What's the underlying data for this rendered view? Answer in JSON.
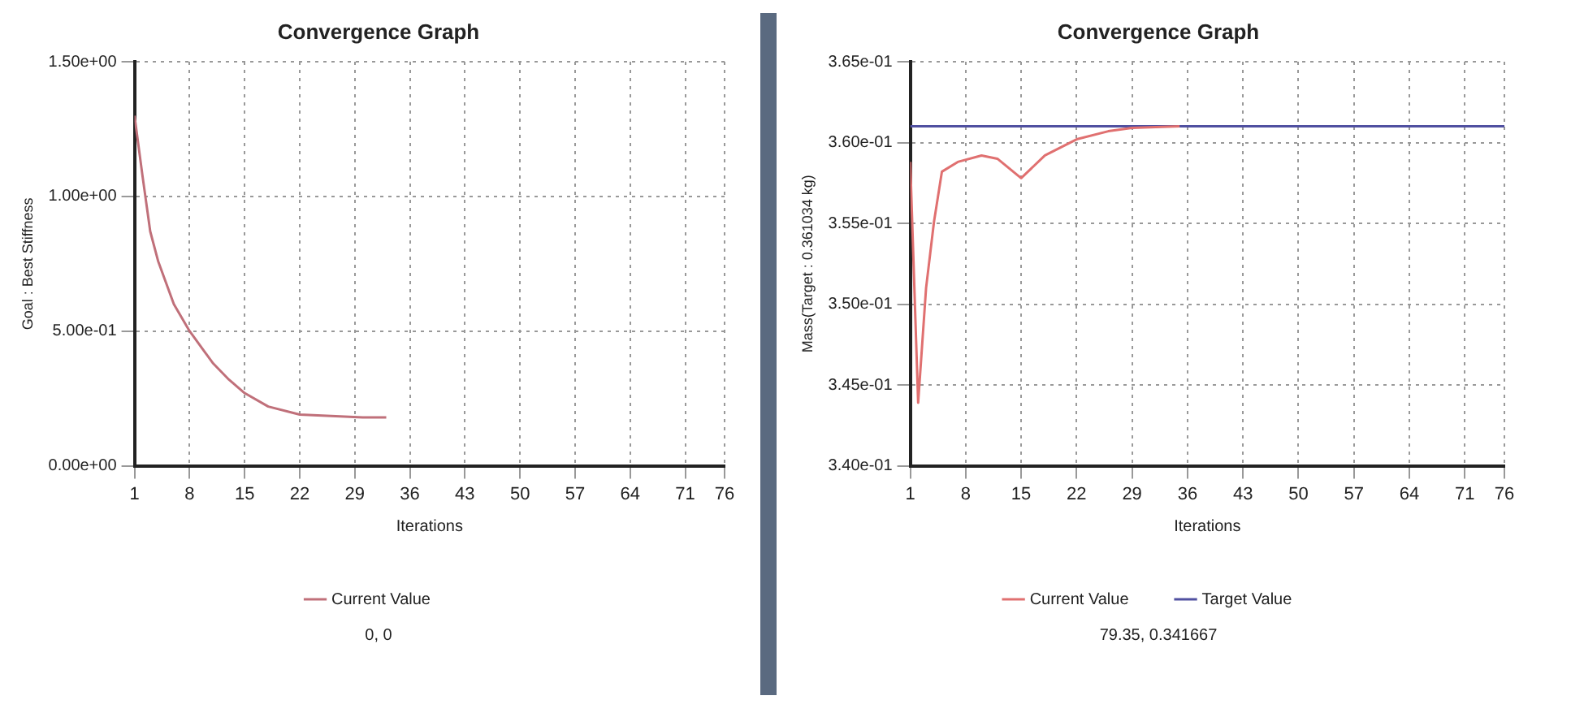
{
  "chart_data": [
    {
      "type": "line",
      "title": "Convergence Graph",
      "xlabel": "Iterations",
      "ylabel": "Goal : Best Stiffness",
      "x": [
        1,
        2,
        3,
        4,
        5,
        6,
        8,
        10,
        11,
        13,
        15,
        18,
        22,
        26,
        30,
        33
      ],
      "series": [
        {
          "name": "Current Value",
          "color": "#c0707a",
          "values": [
            1.3,
            1.08,
            0.87,
            0.76,
            0.68,
            0.6,
            0.5,
            0.42,
            0.38,
            0.32,
            0.27,
            0.22,
            0.19,
            0.185,
            0.18,
            0.18
          ]
        }
      ],
      "xlim": [
        1,
        76
      ],
      "xticks": [
        1,
        8,
        15,
        22,
        29,
        36,
        43,
        50,
        57,
        64,
        71,
        76
      ],
      "ylim": [
        0,
        1.5
      ],
      "yticks": [
        {
          "value": 0,
          "label": "0.00e+00"
        },
        {
          "value": 0.5,
          "label": "5.00e-01"
        },
        {
          "value": 1,
          "label": "1.00e+00"
        },
        {
          "value": 1.5,
          "label": "1.50e+00"
        }
      ],
      "grid": true,
      "legend": "bottom",
      "marker": "none",
      "line_style": "solid",
      "annotations": [
        "0, 0"
      ]
    },
    {
      "type": "line",
      "title": "Convergence Graph",
      "xlabel": "Iterations",
      "ylabel": "Mass(Target : 0.361034 kg)",
      "x": [
        1,
        2,
        3,
        4,
        5,
        7,
        10,
        12,
        15,
        18,
        22,
        26,
        29,
        35
      ],
      "series": [
        {
          "name": "Current Value",
          "color": "#e07070",
          "values": [
            0.3588,
            0.3439,
            0.351,
            0.3551,
            0.3582,
            0.3588,
            0.3592,
            0.359,
            0.3578,
            0.3592,
            0.3602,
            0.3607,
            0.3609,
            0.361
          ]
        },
        {
          "name": "Target Value",
          "color": "#5050a0",
          "x": [
            1,
            76
          ],
          "values": [
            0.361,
            0.361
          ]
        }
      ],
      "xlim": [
        1,
        76
      ],
      "xticks": [
        1,
        8,
        15,
        22,
        29,
        36,
        43,
        50,
        57,
        64,
        71,
        76
      ],
      "ylim": [
        0.34,
        0.365
      ],
      "yticks": [
        {
          "value": 0.34,
          "label": "3.40e-01"
        },
        {
          "value": 0.345,
          "label": "3.45e-01"
        },
        {
          "value": 0.35,
          "label": "3.50e-01"
        },
        {
          "value": 0.355,
          "label": "3.55e-01"
        },
        {
          "value": 0.36,
          "label": "3.60e-01"
        },
        {
          "value": 0.365,
          "label": "3.65e-01"
        }
      ],
      "grid": true,
      "legend": "bottom",
      "marker": "none",
      "line_style": "solid",
      "annotations": [
        "79.35, 0.341667"
      ]
    }
  ]
}
